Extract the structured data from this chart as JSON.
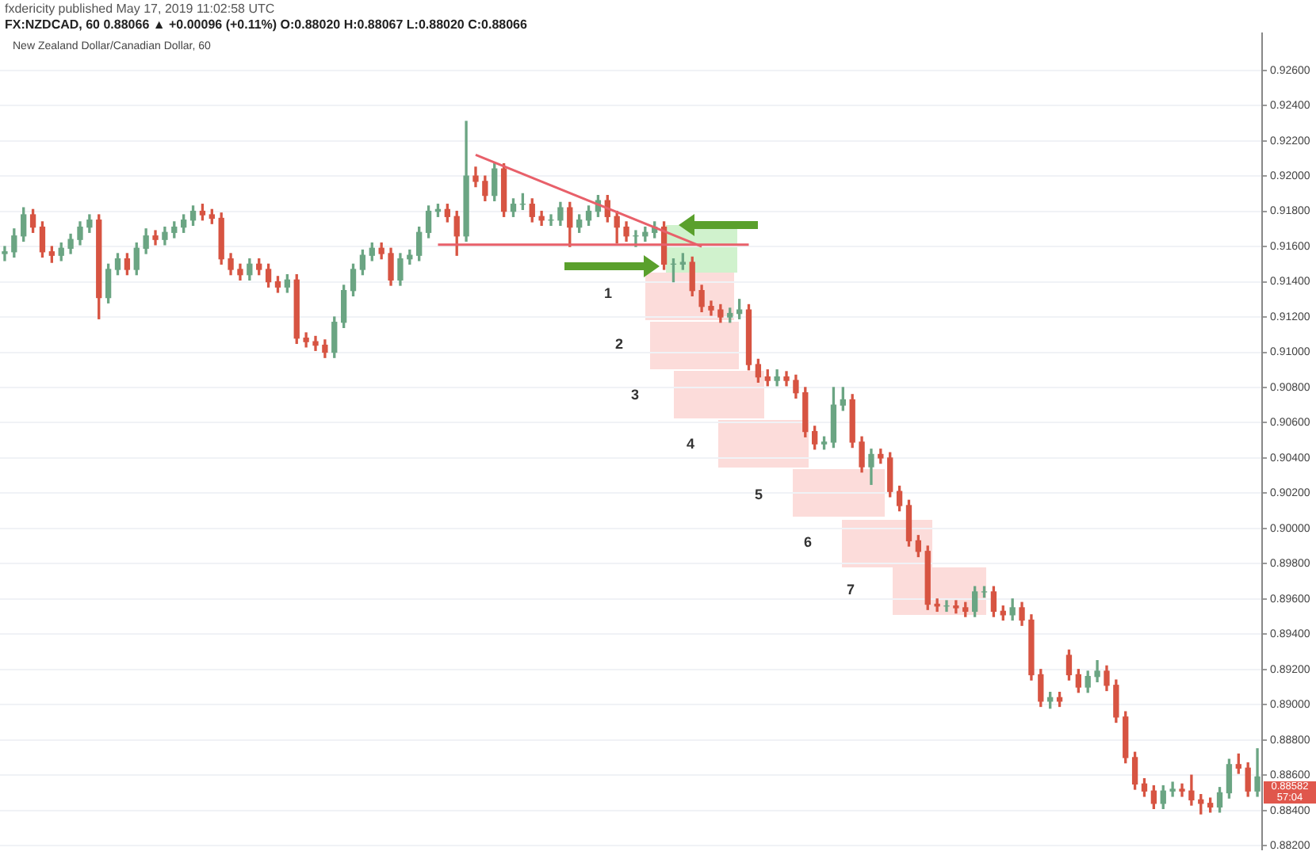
{
  "chart_data": {
    "type": "candlestick",
    "title": "New Zealand Dollar/Canadian Dollar, 60",
    "annotations": [
      "fxdericity published May 17, 2019 11:02:58 UTC",
      "FX:NZDCAD, 60  0.88066 ▲ +0.00096 (+0.11%) O:0.88020 H:0.88067 L:0.88020 C:0.88066",
      "1",
      "2",
      "3",
      "4",
      "5",
      "6",
      "7",
      "0.88582",
      "57:04"
    ],
    "categories": [
      null,
      null,
      null,
      null,
      null,
      null,
      null,
      null,
      null,
      null,
      null,
      null,
      null,
      null,
      null,
      null,
      null,
      null,
      null,
      null,
      null,
      null,
      null,
      null,
      null,
      null,
      null,
      null,
      null,
      null,
      null,
      null,
      null,
      null,
      null,
      null,
      null,
      null,
      null,
      null,
      null,
      null,
      null,
      null,
      null,
      null,
      null,
      null,
      null,
      null,
      null,
      null,
      null,
      null,
      null,
      null,
      null,
      null,
      null,
      null,
      null,
      null,
      null,
      null,
      null,
      null,
      null,
      null,
      null,
      null,
      null,
      null,
      null,
      null,
      null,
      null,
      null,
      null,
      null,
      null,
      null,
      null,
      null,
      null,
      null,
      null,
      null,
      null,
      null,
      null,
      null,
      null,
      null,
      null,
      null,
      null,
      null,
      null,
      null,
      null,
      null,
      null,
      null,
      null,
      null,
      null,
      null,
      null,
      null,
      null,
      null,
      null,
      null,
      null,
      null,
      null,
      null,
      null,
      null,
      null,
      null,
      null,
      null,
      null,
      null,
      null,
      null,
      null,
      null,
      null,
      null,
      null,
      null,
      null
    ],
    "colors": [
      "#6ba583",
      "#6ba583",
      "#6ba583",
      "#d75442",
      "#d75442",
      "#d75442",
      "#6ba583",
      "#6ba583",
      "#6ba583",
      "#6ba583",
      "#d75442",
      "#6ba583",
      "#6ba583",
      "#d75442",
      "#6ba583",
      "#6ba583",
      "#d75442",
      "#6ba583",
      "#6ba583",
      "#6ba583",
      "#6ba583",
      "#d75442",
      "#d75442",
      "#d75442",
      "#d75442",
      "#d75442",
      "#6ba583",
      "#d75442",
      "#d75442",
      "#d75442",
      "#6ba583",
      "#d75442",
      "#d75442",
      "#d75442",
      "#d75442",
      "#6ba583",
      "#6ba583",
      "#6ba583",
      "#6ba583",
      "#6ba583",
      "#d75442",
      "#d75442",
      "#6ba583",
      "#6ba583",
      "#6ba583",
      "#6ba583",
      "#6ba583",
      "#d75442",
      "#d75442",
      "#6ba583",
      "#d75442",
      "#d75442",
      "#6ba583",
      "#d75442",
      "#6ba583",
      "#6ba583",
      "#d75442",
      "#d75442",
      "#6ba583",
      "#6ba583",
      "#d75442",
      "#6ba583",
      "#6ba583",
      "#6ba583",
      "#d75442",
      "#d75442",
      "#d75442",
      "#6ba583",
      "#6ba583",
      "#6ba583",
      "#d75442",
      "#6ba583",
      "#6ba583",
      "#d75442",
      "#d75442",
      "#d75442",
      "#d75442",
      "#6ba583",
      "#6ba583",
      "#d75442",
      "#d75442",
      "#d75442",
      "#6ba583",
      "#d75442",
      "#d75442",
      "#d75442",
      "#d75442",
      "#6ba583",
      "#6ba583",
      "#6ba583",
      "#d75442",
      "#d75442",
      "#6ba583",
      "#d75442",
      "#d75442",
      "#d75442",
      "#d75442",
      "#d75442",
      "#d75442",
      "#d75442",
      "#6ba583",
      "#d75442",
      "#d75442",
      "#6ba583",
      "#6ba583",
      "#d75442",
      "#d75442",
      "#6ba583",
      "#d75442",
      "#d75442",
      "#d75442",
      "#6ba583",
      "#d75442",
      "#d75442",
      "#d75442",
      "#6ba583",
      "#6ba583",
      "#d75442",
      "#d75442",
      "#d75442",
      "#d75442",
      "#d75442",
      "#d75442",
      "#6ba583",
      "#6ba583",
      "#d75442",
      "#d75442",
      "#d75442",
      "#d75442",
      "#6ba583",
      "#6ba583",
      "#d75442",
      "#d75442",
      "#6ba583"
    ],
    "ohlc": [
      [
        0.9156,
        0.916,
        0.9152,
        0.9157
      ],
      [
        0.9157,
        0.917,
        0.9154,
        0.9166
      ],
      [
        0.9166,
        0.9182,
        0.9163,
        0.9178
      ],
      [
        0.9178,
        0.9181,
        0.9168,
        0.9171
      ],
      [
        0.9171,
        0.9174,
        0.9154,
        0.9157
      ],
      [
        0.9157,
        0.916,
        0.9151,
        0.9155
      ],
      [
        0.9155,
        0.9162,
        0.9152,
        0.9159
      ],
      [
        0.9159,
        0.9167,
        0.9156,
        0.9164
      ],
      [
        0.9164,
        0.9174,
        0.9161,
        0.9171
      ],
      [
        0.9171,
        0.9178,
        0.9168,
        0.9175
      ],
      [
        0.9175,
        0.9178,
        0.9119,
        0.9131
      ],
      [
        0.9131,
        0.915,
        0.9128,
        0.9147
      ],
      [
        0.9147,
        0.9156,
        0.9144,
        0.9153
      ],
      [
        0.9153,
        0.9156,
        0.9144,
        0.9147
      ],
      [
        0.9147,
        0.9162,
        0.9144,
        0.9159
      ],
      [
        0.9159,
        0.917,
        0.9156,
        0.9166
      ],
      [
        0.9166,
        0.9169,
        0.9161,
        0.9164
      ],
      [
        0.9164,
        0.9171,
        0.9161,
        0.9168
      ],
      [
        0.9168,
        0.9174,
        0.9165,
        0.9171
      ],
      [
        0.9171,
        0.9178,
        0.9168,
        0.9175
      ],
      [
        0.9175,
        0.9183,
        0.9172,
        0.918
      ],
      [
        0.918,
        0.9184,
        0.9175,
        0.9178
      ],
      [
        0.9178,
        0.9181,
        0.9173,
        0.9176
      ],
      [
        0.9176,
        0.9179,
        0.915,
        0.9153
      ],
      [
        0.9153,
        0.9156,
        0.9144,
        0.9147
      ],
      [
        0.9147,
        0.915,
        0.9141,
        0.9144
      ],
      [
        0.9144,
        0.9153,
        0.9141,
        0.915
      ],
      [
        0.915,
        0.9153,
        0.9144,
        0.9147
      ],
      [
        0.9147,
        0.915,
        0.9137,
        0.914
      ],
      [
        0.914,
        0.9143,
        0.9134,
        0.9137
      ],
      [
        0.9137,
        0.9144,
        0.9134,
        0.9141
      ],
      [
        0.9141,
        0.9144,
        0.9105,
        0.9108
      ],
      [
        0.9108,
        0.9111,
        0.9103,
        0.9106
      ],
      [
        0.9106,
        0.9109,
        0.9101,
        0.9104
      ],
      [
        0.9104,
        0.9107,
        0.9097,
        0.91
      ],
      [
        0.91,
        0.912,
        0.9097,
        0.9117
      ],
      [
        0.9117,
        0.9138,
        0.9114,
        0.9135
      ],
      [
        0.9135,
        0.915,
        0.9132,
        0.9147
      ],
      [
        0.9147,
        0.9158,
        0.9144,
        0.9155
      ],
      [
        0.9155,
        0.9162,
        0.9152,
        0.9159
      ],
      [
        0.9159,
        0.9162,
        0.9153,
        0.9156
      ],
      [
        0.9156,
        0.9159,
        0.9138,
        0.9141
      ],
      [
        0.9141,
        0.9156,
        0.9138,
        0.9153
      ],
      [
        0.9153,
        0.9158,
        0.915,
        0.9155
      ],
      [
        0.9155,
        0.9171,
        0.9152,
        0.9168
      ],
      [
        0.9168,
        0.9183,
        0.9165,
        0.918
      ],
      [
        0.918,
        0.9184,
        0.9177,
        0.9181
      ],
      [
        0.9181,
        0.9184,
        0.9174,
        0.9177
      ],
      [
        0.9177,
        0.918,
        0.9155,
        0.9166
      ],
      [
        0.9166,
        0.9231,
        0.9163,
        0.92
      ],
      [
        0.92,
        0.9205,
        0.9194,
        0.9197
      ],
      [
        0.9197,
        0.92,
        0.9186,
        0.9189
      ],
      [
        0.9189,
        0.9207,
        0.9186,
        0.9204
      ],
      [
        0.9204,
        0.9207,
        0.9177,
        0.918
      ],
      [
        0.918,
        0.9187,
        0.9177,
        0.9184
      ],
      [
        0.9184,
        0.919,
        0.9181,
        0.9184
      ],
      [
        0.9184,
        0.9187,
        0.9174,
        0.9177
      ],
      [
        0.9177,
        0.918,
        0.9172,
        0.9175
      ],
      [
        0.9175,
        0.9178,
        0.9172,
        0.9175
      ],
      [
        0.9175,
        0.9185,
        0.9172,
        0.9182
      ],
      [
        0.9182,
        0.9185,
        0.916,
        0.9171
      ],
      [
        0.9171,
        0.9178,
        0.9168,
        0.9175
      ],
      [
        0.9175,
        0.9183,
        0.9172,
        0.918
      ],
      [
        0.918,
        0.9189,
        0.9177,
        0.9186
      ],
      [
        0.9186,
        0.9189,
        0.9174,
        0.9177
      ],
      [
        0.9177,
        0.918,
        0.9162,
        0.9171
      ],
      [
        0.9171,
        0.9174,
        0.9163,
        0.9166
      ],
      [
        0.9166,
        0.9169,
        0.916,
        0.9166
      ],
      [
        0.9166,
        0.9171,
        0.9163,
        0.9168
      ],
      [
        0.9168,
        0.9174,
        0.9165,
        0.9171
      ],
      [
        0.9171,
        0.9174,
        0.9147,
        0.915
      ],
      [
        0.915,
        0.9153,
        0.914,
        0.915
      ],
      [
        0.915,
        0.9156,
        0.9147,
        0.9151
      ],
      [
        0.9151,
        0.9154,
        0.9132,
        0.9135
      ],
      [
        0.9135,
        0.9138,
        0.9123,
        0.9126
      ],
      [
        0.9126,
        0.9129,
        0.9121,
        0.9124
      ],
      [
        0.9124,
        0.9127,
        0.9117,
        0.912
      ],
      [
        0.912,
        0.9125,
        0.9117,
        0.9122
      ],
      [
        0.9122,
        0.913,
        0.9119,
        0.9124
      ],
      [
        0.9124,
        0.9127,
        0.909,
        0.9093
      ],
      [
        0.9093,
        0.9096,
        0.9083,
        0.9086
      ],
      [
        0.9086,
        0.909,
        0.9081,
        0.9084
      ],
      [
        0.9084,
        0.909,
        0.9081,
        0.9086
      ],
      [
        0.9086,
        0.9089,
        0.9081,
        0.9084
      ],
      [
        0.9084,
        0.9087,
        0.9074,
        0.9077
      ],
      [
        0.9077,
        0.908,
        0.9052,
        0.9055
      ],
      [
        0.9055,
        0.9058,
        0.9045,
        0.9048
      ],
      [
        0.9048,
        0.9052,
        0.9045,
        0.9049
      ],
      [
        0.9049,
        0.908,
        0.9046,
        0.907
      ],
      [
        0.907,
        0.908,
        0.9067,
        0.9073
      ],
      [
        0.9073,
        0.9076,
        0.9046,
        0.9049
      ],
      [
        0.9049,
        0.9052,
        0.9032,
        0.9035
      ],
      [
        0.9035,
        0.9045,
        0.9025,
        0.9042
      ],
      [
        0.9042,
        0.9045,
        0.9037,
        0.904
      ],
      [
        0.904,
        0.9043,
        0.9018,
        0.9021
      ],
      [
        0.9021,
        0.9024,
        0.901,
        0.9013
      ],
      [
        0.9013,
        0.9016,
        0.899,
        0.8993
      ],
      [
        0.8993,
        0.8996,
        0.8984,
        0.8987
      ],
      [
        0.8987,
        0.899,
        0.8954,
        0.8957
      ],
      [
        0.8957,
        0.896,
        0.8953,
        0.8956
      ],
      [
        0.8956,
        0.8959,
        0.8953,
        0.8956
      ],
      [
        0.8956,
        0.8959,
        0.8952,
        0.8955
      ],
      [
        0.8955,
        0.8958,
        0.895,
        0.8953
      ],
      [
        0.8953,
        0.8967,
        0.895,
        0.8964
      ],
      [
        0.8964,
        0.8967,
        0.8961,
        0.8964
      ],
      [
        0.8964,
        0.8967,
        0.895,
        0.8953
      ],
      [
        0.8953,
        0.8956,
        0.8948,
        0.8951
      ],
      [
        0.8951,
        0.896,
        0.8948,
        0.8955
      ],
      [
        0.8955,
        0.8958,
        0.8945,
        0.8948
      ],
      [
        0.8948,
        0.8951,
        0.8914,
        0.8917
      ],
      [
        0.8917,
        0.892,
        0.8899,
        0.8902
      ],
      [
        0.8902,
        0.8907,
        0.8898,
        0.8904
      ],
      [
        0.8904,
        0.8907,
        0.8899,
        0.8902
      ],
      [
        0.8928,
        0.8931,
        0.8914,
        0.8917
      ],
      [
        0.8917,
        0.892,
        0.8907,
        0.891
      ],
      [
        0.891,
        0.8919,
        0.8907,
        0.8916
      ],
      [
        0.8916,
        0.8925,
        0.8913,
        0.8919
      ],
      [
        0.8919,
        0.8922,
        0.8908,
        0.8911
      ],
      [
        0.8911,
        0.8914,
        0.889,
        0.8893
      ],
      [
        0.8893,
        0.8896,
        0.8867,
        0.887
      ],
      [
        0.887,
        0.8873,
        0.8852,
        0.8855
      ],
      [
        0.8855,
        0.8858,
        0.8848,
        0.8851
      ],
      [
        0.8851,
        0.8854,
        0.8841,
        0.8844
      ],
      [
        0.8844,
        0.8854,
        0.8841,
        0.8851
      ],
      [
        0.8851,
        0.8856,
        0.8848,
        0.8852
      ],
      [
        0.8852,
        0.8855,
        0.8848,
        0.8851
      ],
      [
        0.8851,
        0.886,
        0.8843,
        0.8846
      ],
      [
        0.8846,
        0.8849,
        0.8838,
        0.8844
      ],
      [
        0.8844,
        0.8847,
        0.8839,
        0.8842
      ],
      [
        0.8842,
        0.8853,
        0.8839,
        0.885
      ],
      [
        0.885,
        0.8869,
        0.8847,
        0.8866
      ],
      [
        0.8866,
        0.8872,
        0.8861,
        0.8864
      ],
      [
        0.8864,
        0.8867,
        0.8848,
        0.8851
      ],
      [
        0.8851,
        0.8875,
        0.8848,
        0.8859
      ]
    ],
    "series": [
      {
        "type": "line",
        "color": "#e8606a",
        "values": [
          null,
          null,
          null,
          null,
          null,
          null,
          null,
          null,
          null,
          null,
          null,
          null,
          null,
          null,
          null,
          null,
          null,
          null,
          null,
          null,
          null,
          null,
          null,
          null,
          null,
          null,
          null,
          null,
          null,
          null,
          null,
          null,
          null,
          null,
          null,
          null,
          null,
          null,
          null,
          null,
          null,
          null,
          null,
          null,
          null,
          null,
          null,
          null,
          null,
          null,
          0.9212,
          null,
          null,
          null,
          null,
          null,
          null,
          null,
          null,
          null,
          null,
          null,
          null,
          null,
          null,
          null,
          null,
          null,
          null,
          null,
          null,
          null,
          null,
          null,
          0.916,
          null,
          null,
          null,
          null,
          null,
          null,
          null,
          null,
          null,
          null,
          null,
          null,
          null,
          null,
          null,
          null,
          null,
          null,
          null,
          null,
          null,
          null,
          null,
          null,
          null,
          null,
          null,
          null,
          null,
          null,
          null,
          null,
          null,
          null,
          null,
          null,
          null,
          null,
          null,
          null,
          null,
          null,
          null,
          null,
          null,
          null,
          null,
          null,
          null,
          null,
          null,
          null,
          null,
          null,
          null,
          null,
          null,
          null,
          null
        ]
      },
      {
        "type": "line",
        "color": "#e8606a",
        "values": [
          null,
          null,
          null,
          null,
          null,
          null,
          null,
          null,
          null,
          null,
          null,
          null,
          null,
          null,
          null,
          null,
          null,
          null,
          null,
          null,
          null,
          null,
          null,
          null,
          null,
          null,
          null,
          null,
          null,
          null,
          null,
          null,
          null,
          null,
          null,
          null,
          null,
          null,
          null,
          null,
          null,
          null,
          null,
          null,
          null,
          null,
          0.9161,
          null,
          null,
          null,
          null,
          null,
          null,
          null,
          null,
          null,
          null,
          null,
          null,
          null,
          null,
          null,
          null,
          null,
          null,
          null,
          null,
          null,
          null,
          null,
          null,
          null,
          null,
          null,
          null,
          null,
          null,
          null,
          null,
          0.9161,
          null,
          null,
          null,
          null,
          null,
          null,
          null,
          null,
          null,
          null,
          null,
          null,
          null,
          null,
          null,
          null,
          null,
          null,
          null,
          null,
          null,
          null,
          null,
          null,
          null,
          null,
          null,
          null,
          null,
          null,
          null,
          null,
          null,
          null,
          null,
          null,
          null,
          null,
          null,
          null,
          null,
          null,
          null,
          null,
          null,
          null,
          null,
          null,
          null,
          null,
          null,
          null,
          null,
          null
        ]
      }
    ],
    "ylim": [
      0.8818,
      0.9281
    ],
    "yticks": [
      {
        "value": 0.882,
        "label": "0.88200"
      },
      {
        "value": 0.884,
        "label": "0.88400"
      },
      {
        "value": 0.886,
        "label": "0.88600"
      },
      {
        "value": 0.888,
        "label": "0.88800"
      },
      {
        "value": 0.89,
        "label": "0.89000"
      },
      {
        "value": 0.892,
        "label": "0.89200"
      },
      {
        "value": 0.894,
        "label": "0.89400"
      },
      {
        "value": 0.896,
        "label": "0.89600"
      },
      {
        "value": 0.898,
        "label": "0.89800"
      },
      {
        "value": 0.9,
        "label": "0.90000"
      },
      {
        "value": 0.902,
        "label": "0.90200"
      },
      {
        "value": 0.904,
        "label": "0.90400"
      },
      {
        "value": 0.906,
        "label": "0.90600"
      },
      {
        "value": 0.908,
        "label": "0.90800"
      },
      {
        "value": 0.91,
        "label": "0.91000"
      },
      {
        "value": 0.912,
        "label": "0.91200"
      },
      {
        "value": 0.914,
        "label": "0.91400"
      },
      {
        "value": 0.916,
        "label": "0.91600"
      },
      {
        "value": 0.918,
        "label": "0.91800"
      },
      {
        "value": 0.92,
        "label": "0.92000"
      },
      {
        "value": 0.922,
        "label": "0.92200"
      },
      {
        "value": 0.924,
        "label": "0.92400"
      },
      {
        "value": 0.926,
        "label": "0.92600"
      }
    ],
    "tick_labels": "y",
    "grid": "y",
    "legend": false
  }
}
